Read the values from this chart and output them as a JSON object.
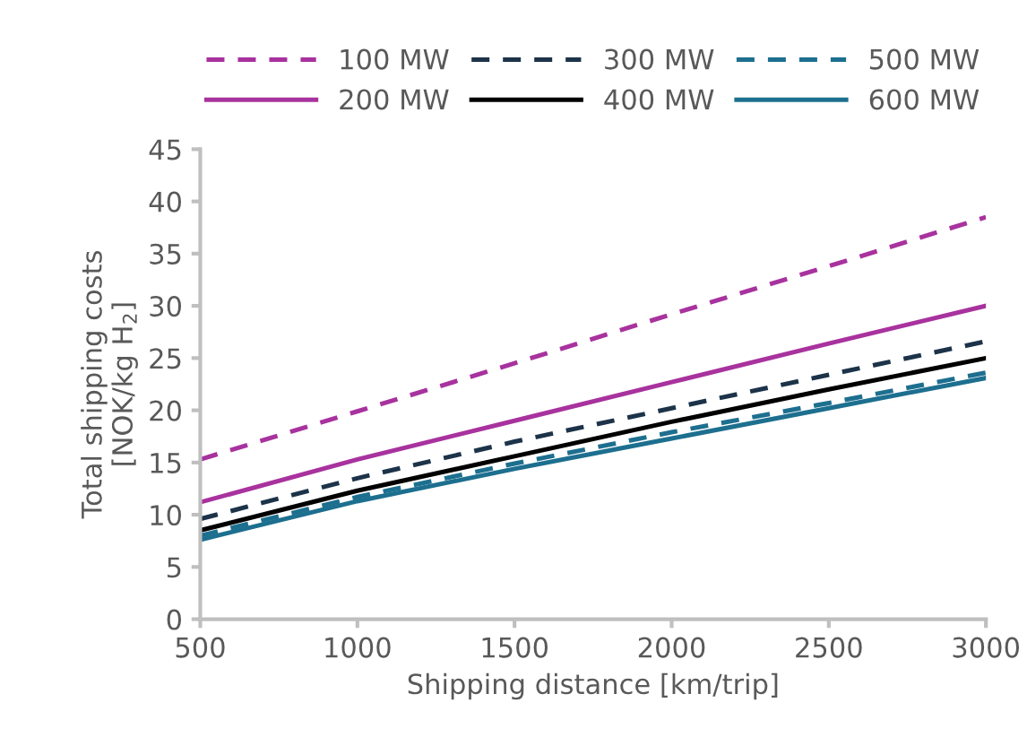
{
  "chart_data": {
    "type": "line",
    "xlabel": "Shipping distance [km/trip]",
    "ylabel": "Total shipping costs\n[NOK/kg H$_{2}$]",
    "x": [
      500,
      1000,
      1500,
      2000,
      2500,
      3000
    ],
    "series": [
      {
        "name": "100 MW",
        "color": "#a8329e",
        "line_style": "dashed",
        "values": [
          15.3,
          19.9,
          24.5,
          29.2,
          33.8,
          38.5
        ]
      },
      {
        "name": "200 MW",
        "color": "#a8329e",
        "line_style": "solid",
        "values": [
          11.2,
          15.3,
          19.0,
          22.7,
          26.4,
          30.0
        ]
      },
      {
        "name": "300 MW",
        "color": "#1c3349",
        "line_style": "dashed",
        "values": [
          9.6,
          13.5,
          17.0,
          20.2,
          23.4,
          26.6
        ]
      },
      {
        "name": "400 MW",
        "color": "#000000",
        "line_style": "solid",
        "values": [
          8.5,
          12.3,
          15.6,
          18.9,
          22.0,
          25.0
        ]
      },
      {
        "name": "500 MW",
        "color": "#1d6f8f",
        "line_style": "dashed",
        "values": [
          8.0,
          11.7,
          14.9,
          17.9,
          20.7,
          23.6
        ]
      },
      {
        "name": "600 MW",
        "color": "#1d6f8f",
        "line_style": "solid",
        "values": [
          7.6,
          11.3,
          14.4,
          17.3,
          20.2,
          23.1
        ]
      }
    ],
    "xlim": [
      500,
      3000
    ],
    "xticks": [
      500,
      1000,
      1500,
      2000,
      2500,
      3000
    ],
    "ylim": [
      0,
      45
    ],
    "yticks": [
      0,
      5,
      10,
      15,
      20,
      25,
      30,
      35,
      40,
      45
    ],
    "grid": false,
    "legend": "top",
    "marker": "none"
  }
}
